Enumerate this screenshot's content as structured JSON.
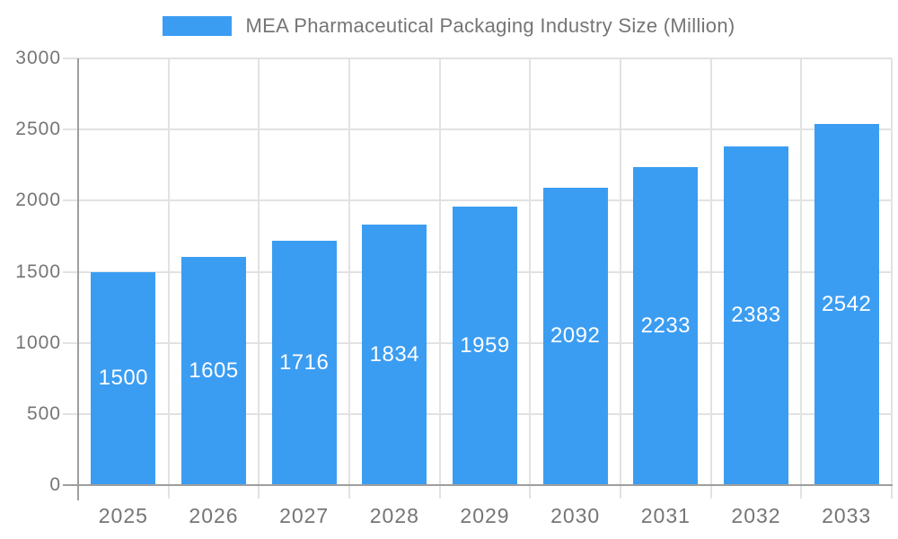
{
  "chart_data": {
    "type": "bar",
    "title": "MEA Pharmaceutical Packaging Industry Size (Million)",
    "legend": [
      {
        "label": "MEA Pharmaceutical Packaging Industry Size (Million)",
        "color": "#3b9df2"
      }
    ],
    "categories": [
      "2025",
      "2026",
      "2027",
      "2028",
      "2029",
      "2030",
      "2031",
      "2032",
      "2033"
    ],
    "values": [
      1500,
      1605,
      1716,
      1834,
      1959,
      2092,
      2233,
      2383,
      2542
    ],
    "value_labels_shown_inside_bars": true,
    "xlabel": "",
    "ylabel": "",
    "ylim": [
      0,
      3000
    ],
    "yticks": [
      0,
      500,
      1000,
      1500,
      2000,
      2500,
      3000
    ],
    "grid": "on",
    "legend_position": "top-center",
    "colors": {
      "bar": "#3b9df2",
      "grid": "#e2e2e2",
      "axis": "#9e9e9e",
      "tick_label": "#757575",
      "value_text": "#ffffff",
      "background": "#ffffff"
    }
  }
}
